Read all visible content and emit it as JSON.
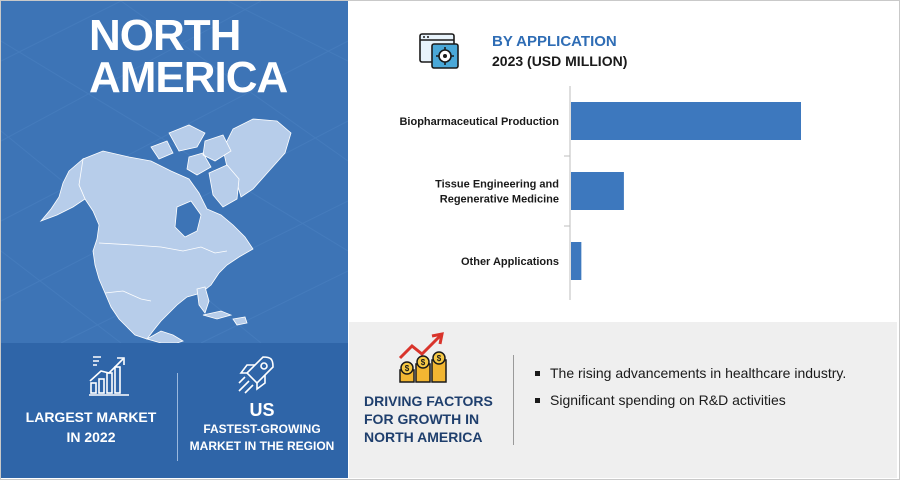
{
  "region": {
    "title_line1": "NORTH",
    "title_line2": "AMERICA"
  },
  "stats": {
    "largest": {
      "line1": "LARGEST MARKET",
      "line2": "IN 2022",
      "icon": "bar-growth-icon"
    },
    "fastest": {
      "country": "US",
      "line1": "FASTEST-GROWING",
      "line2": "MARKET IN THE REGION",
      "icon": "rocket-icon"
    }
  },
  "chart_data": {
    "type": "bar",
    "orientation": "horizontal",
    "title": "BY APPLICATION",
    "subtitle": "2023 (USD MILLION)",
    "categories": [
      [
        "Biopharmaceutical Production"
      ],
      [
        "Tissue Engineering and",
        "Regenerative Medicine"
      ],
      [
        "Other Applications"
      ]
    ],
    "values": [
      100,
      23,
      4.5
    ],
    "grid": false,
    "legend": "none",
    "color": "#3d78be"
  },
  "drivers": {
    "title_line1": "DRIVING FACTORS",
    "title_line2": "FOR GROWTH IN",
    "title_line3": "NORTH AMERICA",
    "icon": "money-growth-icon",
    "items": [
      "The rising advancements in healthcare industry.",
      "Significant spending on R&D activities"
    ]
  },
  "colors": {
    "panel_blue": "#3d74b6",
    "strip_blue": "#2f65a8",
    "accent_blue": "#2f6db5",
    "bar_blue": "#3d78be",
    "drivers_bg": "#efefef"
  }
}
